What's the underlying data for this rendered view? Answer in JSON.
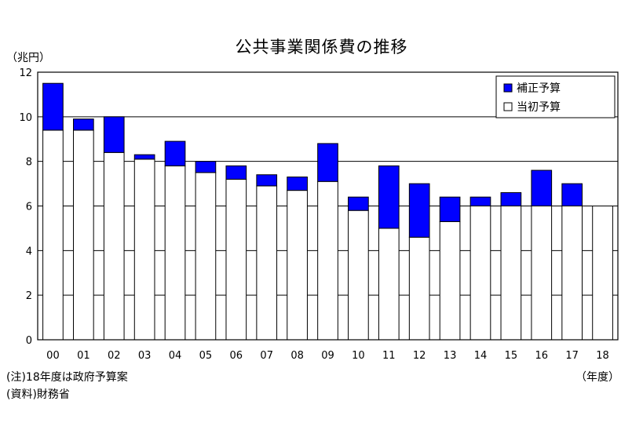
{
  "chart_data": {
    "type": "bar",
    "stacked": true,
    "title": "公共事業関係費の推移",
    "ylabel": "（兆円）",
    "xlabel": "（年度）",
    "ylim": [
      0,
      12
    ],
    "yticks": [
      0,
      2,
      4,
      6,
      8,
      10,
      12
    ],
    "grid": true,
    "legend_position": "top-right",
    "categories": [
      "00",
      "01",
      "02",
      "03",
      "04",
      "05",
      "06",
      "07",
      "08",
      "09",
      "10",
      "11",
      "12",
      "13",
      "14",
      "15",
      "16",
      "17",
      "18"
    ],
    "series": [
      {
        "name": "当初予算",
        "color": "#ffffff",
        "values": [
          9.4,
          9.4,
          8.4,
          8.1,
          7.8,
          7.5,
          7.2,
          6.9,
          6.7,
          7.1,
          5.8,
          5.0,
          4.6,
          5.3,
          6.0,
          6.0,
          6.0,
          6.0,
          6.0
        ]
      },
      {
        "name": "補正予算",
        "color": "#0000ff",
        "values": [
          2.1,
          0.5,
          1.6,
          0.2,
          1.1,
          0.5,
          0.6,
          0.5,
          0.6,
          1.7,
          0.6,
          2.8,
          2.4,
          1.1,
          0.4,
          0.6,
          1.6,
          1.0,
          0.0
        ]
      }
    ]
  },
  "notes": {
    "note1": "(注)18年度は政府予算案",
    "note2": "(資料)財務省"
  }
}
